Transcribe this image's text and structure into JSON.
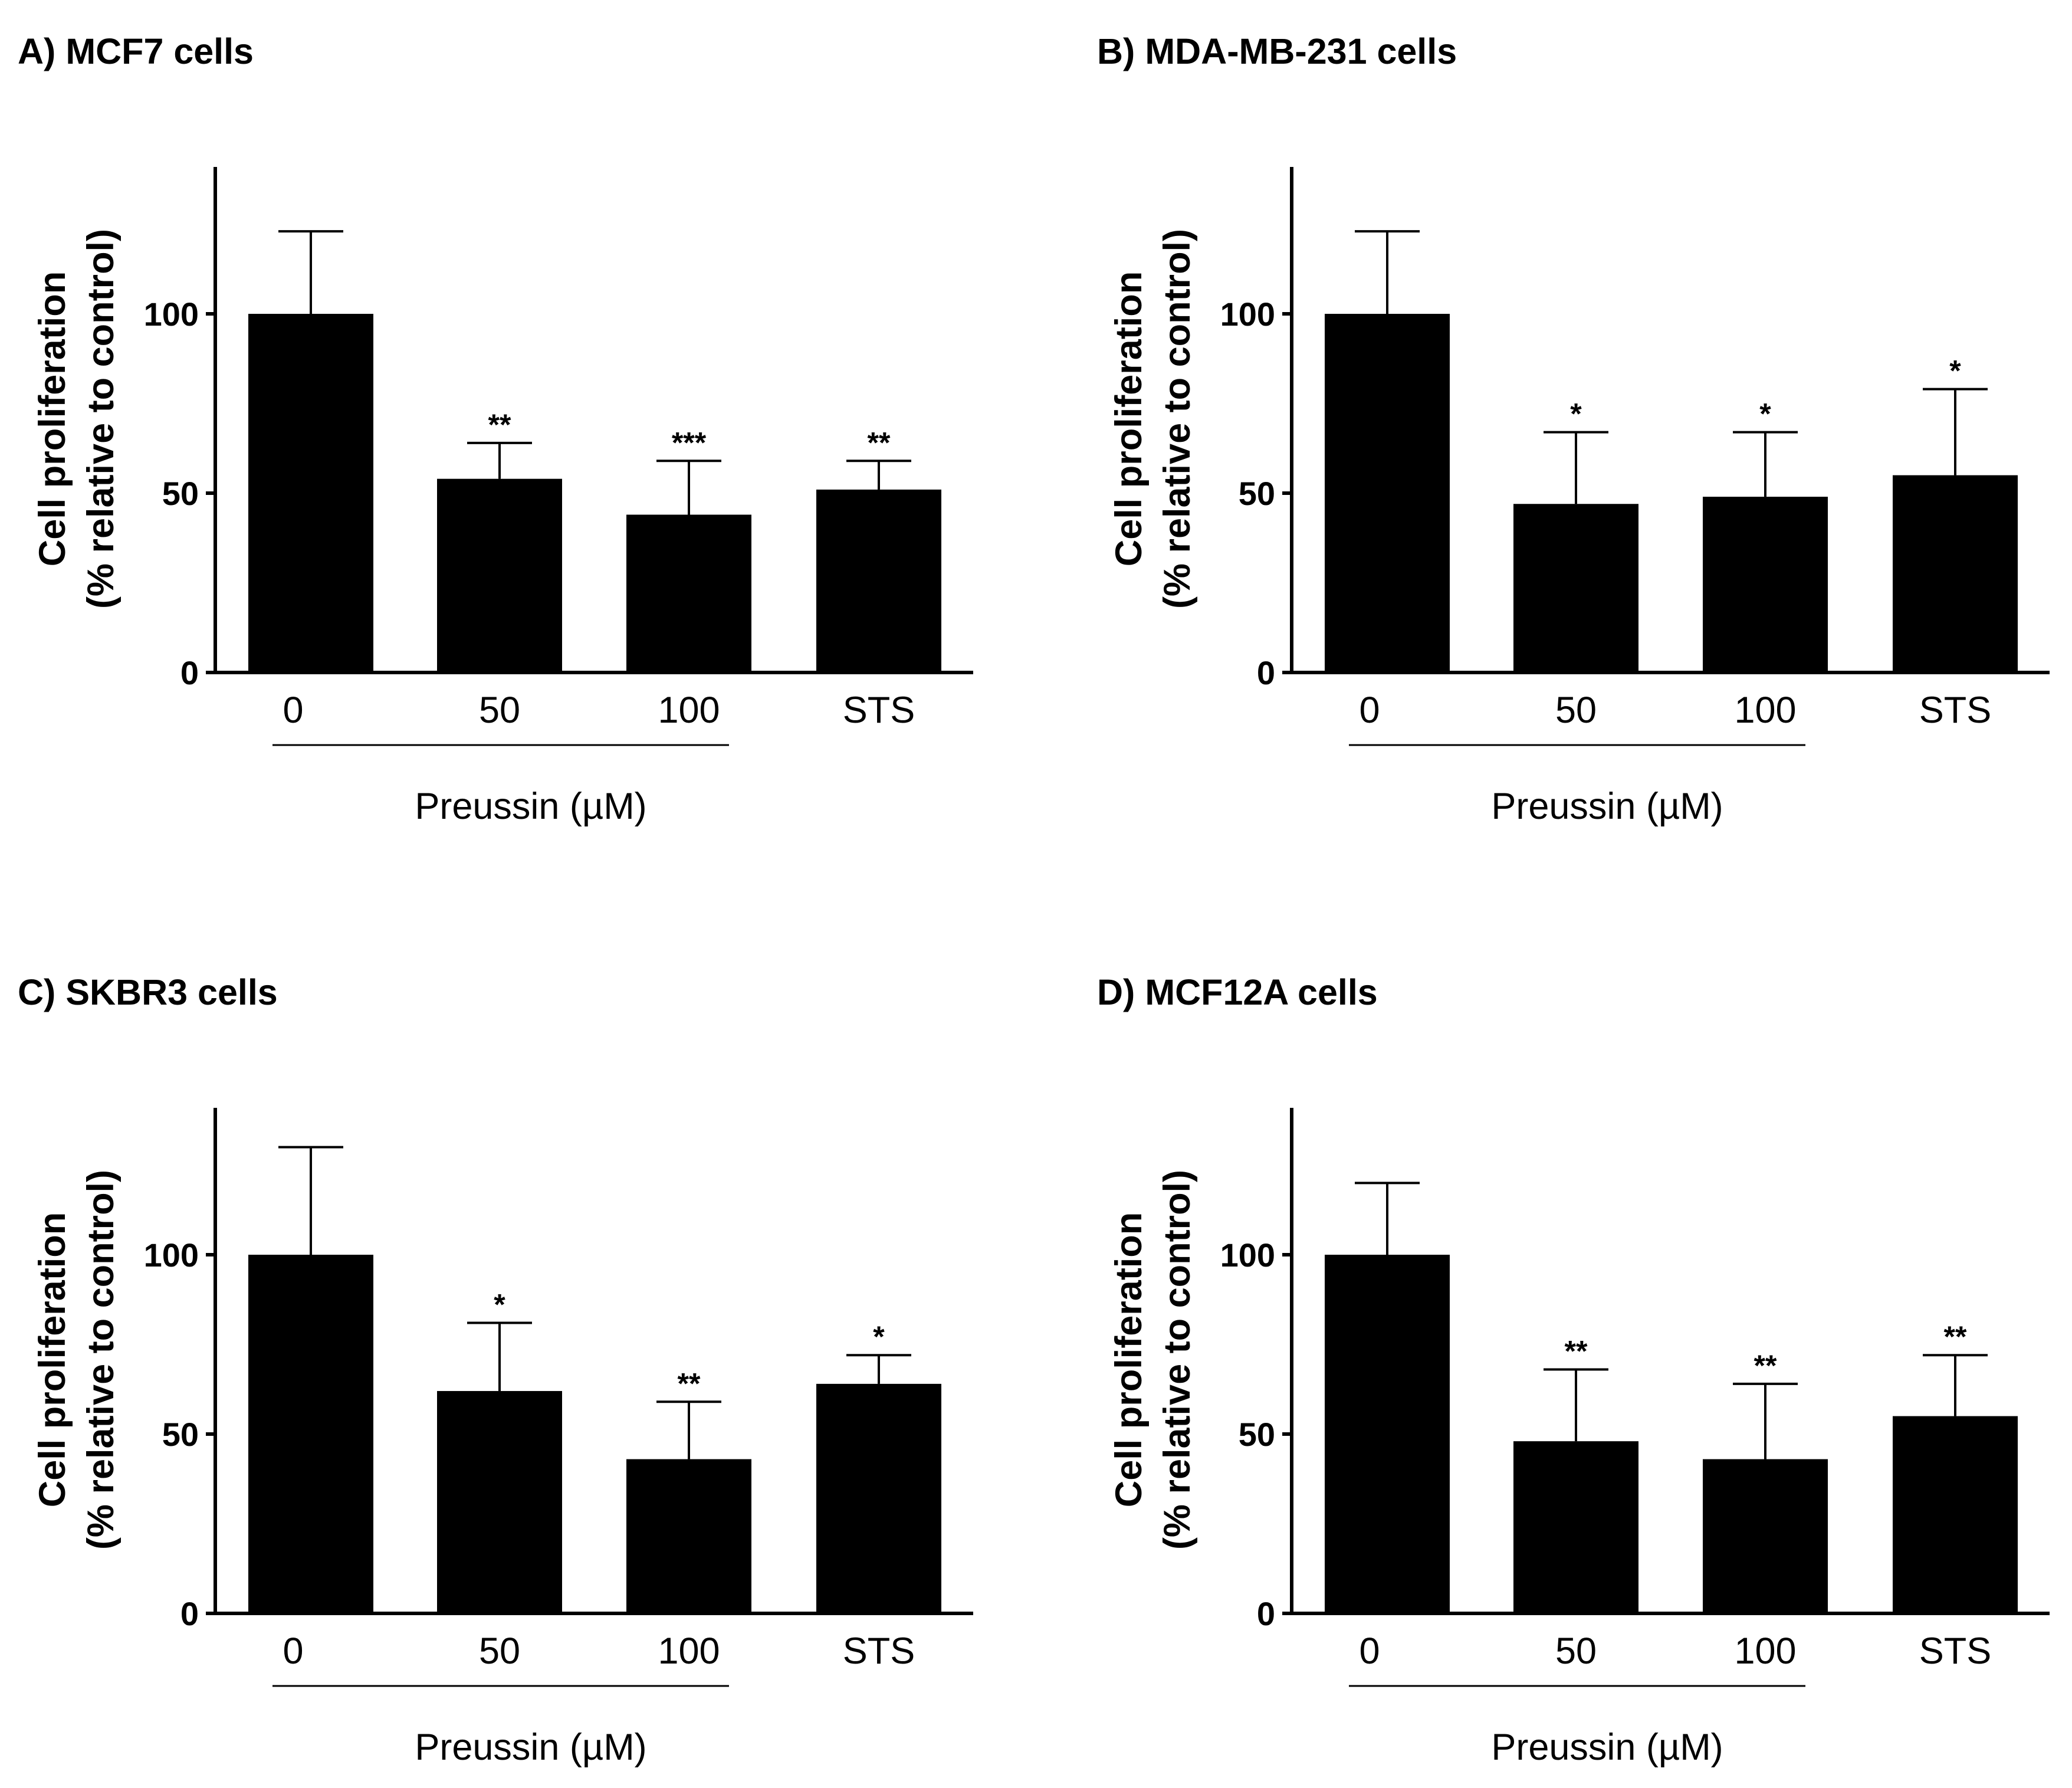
{
  "chart_data": [
    {
      "type": "bar",
      "title": "A) MCF7 cells",
      "ylabel_line1": "Cell proliferation",
      "ylabel_line2": "(% relative to control)",
      "xlabel": "Preussin (µM)",
      "categories": [
        "0",
        "50",
        "100",
        "STS"
      ],
      "values": [
        100,
        54,
        44,
        51
      ],
      "error_upper": [
        123,
        64,
        59,
        59
      ],
      "significance": [
        "",
        "**",
        "***",
        "**"
      ],
      "yticks": [
        "0",
        "50",
        "100"
      ],
      "ylim": [
        0,
        140
      ],
      "bar_color": "#000000"
    },
    {
      "type": "bar",
      "title": "B) MDA-MB-231 cells",
      "ylabel_line1": "Cell proliferation",
      "ylabel_line2": "(% relative to control)",
      "xlabel": "Preussin (µM)",
      "categories": [
        "0",
        "50",
        "100",
        "STS"
      ],
      "values": [
        100,
        47,
        49,
        55
      ],
      "error_upper": [
        123,
        67,
        67,
        79
      ],
      "significance": [
        "",
        "*",
        "*",
        "*"
      ],
      "yticks": [
        "0",
        "50",
        "100"
      ],
      "ylim": [
        0,
        140
      ],
      "bar_color": "#000000"
    },
    {
      "type": "bar",
      "title": "C) SKBR3 cells",
      "ylabel_line1": "Cell proliferation",
      "ylabel_line2": "(% relative to control)",
      "xlabel": "Preussin (µM)",
      "categories": [
        "0",
        "50",
        "100",
        "STS"
      ],
      "values": [
        100,
        62,
        43,
        64
      ],
      "error_upper": [
        130,
        81,
        59,
        72
      ],
      "significance": [
        "",
        "*",
        "**",
        "*"
      ],
      "yticks": [
        "0",
        "50",
        "100"
      ],
      "ylim": [
        0,
        140
      ],
      "bar_color": "#000000"
    },
    {
      "type": "bar",
      "title": "D) MCF12A cells",
      "ylabel_line1": "Cell proliferation",
      "ylabel_line2": "(% relative to control)",
      "xlabel": "Preussin (µM)",
      "categories": [
        "0",
        "50",
        "100",
        "STS"
      ],
      "values": [
        100,
        48,
        43,
        55
      ],
      "error_upper": [
        120,
        68,
        64,
        72
      ],
      "significance": [
        "",
        "**",
        "**",
        "**"
      ],
      "yticks": [
        "0",
        "50",
        "100"
      ],
      "ylim": [
        0,
        140
      ],
      "bar_color": "#000000"
    }
  ]
}
